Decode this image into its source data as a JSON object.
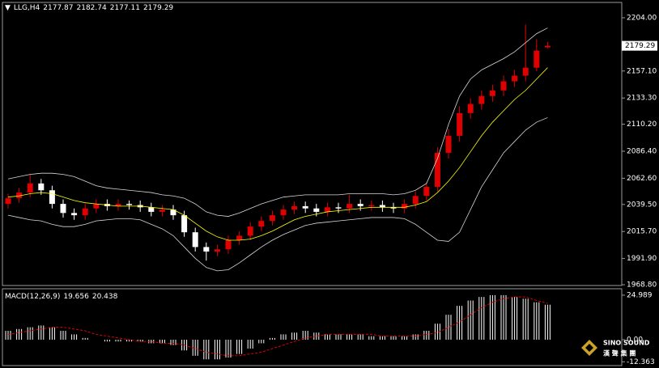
{
  "chart_data": [
    {
      "type": "candlestick",
      "title": "LLG,H4",
      "open": [
        2040,
        2045,
        2050,
        2058,
        2052,
        2040,
        2032,
        2030,
        2036,
        2040,
        2038,
        2040,
        2039,
        2037,
        2033,
        2035,
        2030,
        2015,
        2002,
        1998,
        2000,
        2008,
        2012,
        2020,
        2025,
        2030,
        2035,
        2038,
        2036,
        2033,
        2037,
        2036,
        2040,
        2038,
        2039,
        2037,
        2036,
        2040,
        2047,
        2055,
        2085,
        2100,
        2120,
        2128,
        2135,
        2140,
        2148,
        2153,
        2160,
        2177.87
      ],
      "high": [
        2049,
        2054,
        2066,
        2062,
        2056,
        2044,
        2036,
        2040,
        2044,
        2044,
        2044,
        2043,
        2043,
        2041,
        2039,
        2039,
        2034,
        2019,
        2006,
        2004,
        2012,
        2016,
        2024,
        2029,
        2034,
        2039,
        2042,
        2042,
        2040,
        2041,
        2041,
        2048,
        2044,
        2043,
        2043,
        2041,
        2044,
        2051,
        2059,
        2090,
        2106,
        2126,
        2133,
        2140,
        2145,
        2153,
        2158,
        2198,
        2185,
        2182.74
      ],
      "low": [
        2036,
        2041,
        2046,
        2048,
        2036,
        2028,
        2026,
        2026,
        2032,
        2034,
        2034,
        2035,
        2033,
        2029,
        2029,
        2026,
        2011,
        1998,
        1990,
        1994,
        1996,
        2004,
        2008,
        2016,
        2021,
        2026,
        2031,
        2032,
        2029,
        2029,
        2032,
        2032,
        2034,
        2034,
        2033,
        2032,
        2032,
        2036,
        2043,
        2051,
        2080,
        2095,
        2115,
        2123,
        2130,
        2135,
        2143,
        2148,
        2157,
        2177.11
      ],
      "close": [
        2045,
        2050,
        2058,
        2052,
        2040,
        2032,
        2030,
        2036,
        2040,
        2038,
        2040,
        2039,
        2037,
        2033,
        2035,
        2030,
        2015,
        2002,
        1998,
        2000,
        2008,
        2012,
        2020,
        2025,
        2030,
        2035,
        2038,
        2036,
        2033,
        2037,
        2036,
        2040,
        2038,
        2039,
        2037,
        2036,
        2040,
        2047,
        2055,
        2085,
        2100,
        2120,
        2128,
        2135,
        2140,
        2148,
        2153,
        2160,
        2175,
        2179.29
      ],
      "up_color": "#e00000",
      "down_color": "#ffffff",
      "overlays": [
        {
          "color": "#d8d8d8",
          "values": [
            2062,
            2064,
            2066,
            2067,
            2067,
            2066,
            2064,
            2060,
            2056,
            2054,
            2053,
            2052,
            2051,
            2050,
            2048,
            2047,
            2045,
            2040,
            2033,
            2030,
            2029,
            2032,
            2036,
            2040,
            2043,
            2046,
            2047,
            2048,
            2048,
            2048,
            2048,
            2049,
            2049,
            2049,
            2049,
            2048,
            2049,
            2052,
            2058,
            2080,
            2110,
            2135,
            2150,
            2158,
            2163,
            2168,
            2174,
            2182,
            2190,
            2195
          ]
        },
        {
          "color": "#d8d8d8",
          "values": [
            2030,
            2028,
            2026,
            2025,
            2022,
            2020,
            2020,
            2022,
            2025,
            2026,
            2027,
            2027,
            2026,
            2022,
            2018,
            2012,
            2002,
            1992,
            1984,
            1981,
            1982,
            1988,
            1995,
            2002,
            2008,
            2013,
            2017,
            2021,
            2023,
            2024,
            2025,
            2026,
            2027,
            2028,
            2028,
            2028,
            2027,
            2022,
            2015,
            2008,
            2007,
            2015,
            2035,
            2055,
            2070,
            2085,
            2095,
            2105,
            2112,
            2116
          ]
        },
        {
          "color": "#ffff00",
          "values": [
            2046,
            2047,
            2049,
            2050,
            2049,
            2046,
            2043,
            2041,
            2040,
            2039,
            2038,
            2038,
            2038,
            2037,
            2036,
            2035,
            2030,
            2023,
            2016,
            2011,
            2008,
            2008,
            2009,
            2012,
            2016,
            2021,
            2026,
            2029,
            2031,
            2033,
            2034,
            2035,
            2036,
            2037,
            2037,
            2037,
            2037,
            2039,
            2042,
            2050,
            2060,
            2072,
            2086,
            2100,
            2112,
            2122,
            2132,
            2140,
            2150,
            2160
          ]
        }
      ],
      "ylim": [
        1968.1,
        2217.5
      ],
      "yticks": [
        {
          "value": 2204,
          "label": "2204.00"
        },
        {
          "value": 2157.1,
          "label": "2157.10"
        },
        {
          "value": 2133.3,
          "label": "2133.30"
        },
        {
          "value": 2110.2,
          "label": "2110.20"
        },
        {
          "value": 2086.4,
          "label": "2086.40"
        },
        {
          "value": 2062.6,
          "label": "2062.60"
        },
        {
          "value": 2039.5,
          "label": "2039.50"
        },
        {
          "value": 2015.7,
          "label": "2015.70"
        },
        {
          "value": 1991.9,
          "label": "1991.90"
        },
        {
          "value": 1968.8,
          "label": "1968.80"
        }
      ]
    },
    {
      "type": "macd",
      "title": "MACD(12,26,9)",
      "values": [
        5,
        6,
        7,
        8,
        7,
        5,
        3,
        1,
        0,
        -1,
        -1,
        -1,
        -1,
        -2,
        -2,
        -3,
        -6,
        -9,
        -11,
        -11,
        -10,
        -8,
        -5,
        -2,
        1,
        3,
        4,
        5,
        4,
        3,
        3,
        3,
        3,
        2,
        2,
        2,
        2,
        3,
        5,
        9,
        14,
        19,
        22,
        24,
        25,
        25,
        24,
        23,
        21,
        19.656
      ],
      "signal": [
        3,
        4,
        5,
        6,
        7,
        7,
        6,
        5,
        3,
        2,
        1,
        0,
        -1,
        -1,
        -2,
        -2,
        -3,
        -5,
        -7,
        -8,
        -9,
        -9,
        -8,
        -7,
        -5,
        -3,
        -1,
        1,
        2,
        3,
        3,
        3,
        3,
        3,
        2,
        2,
        2,
        2,
        3,
        4,
        7,
        10,
        14,
        18,
        21,
        23,
        24,
        24,
        22,
        20.438
      ],
      "color": "#ffffff",
      "signal_color": "#e00000",
      "ylim": [
        -14.5,
        28.6
      ],
      "yticks": [
        24.989,
        {
          "value": 0,
          "label": "0.00"
        },
        -12.363
      ]
    }
  ],
  "watermark": {
    "brand": "SINO SOUND",
    "brand_cn": "漢 聲 集 團"
  }
}
